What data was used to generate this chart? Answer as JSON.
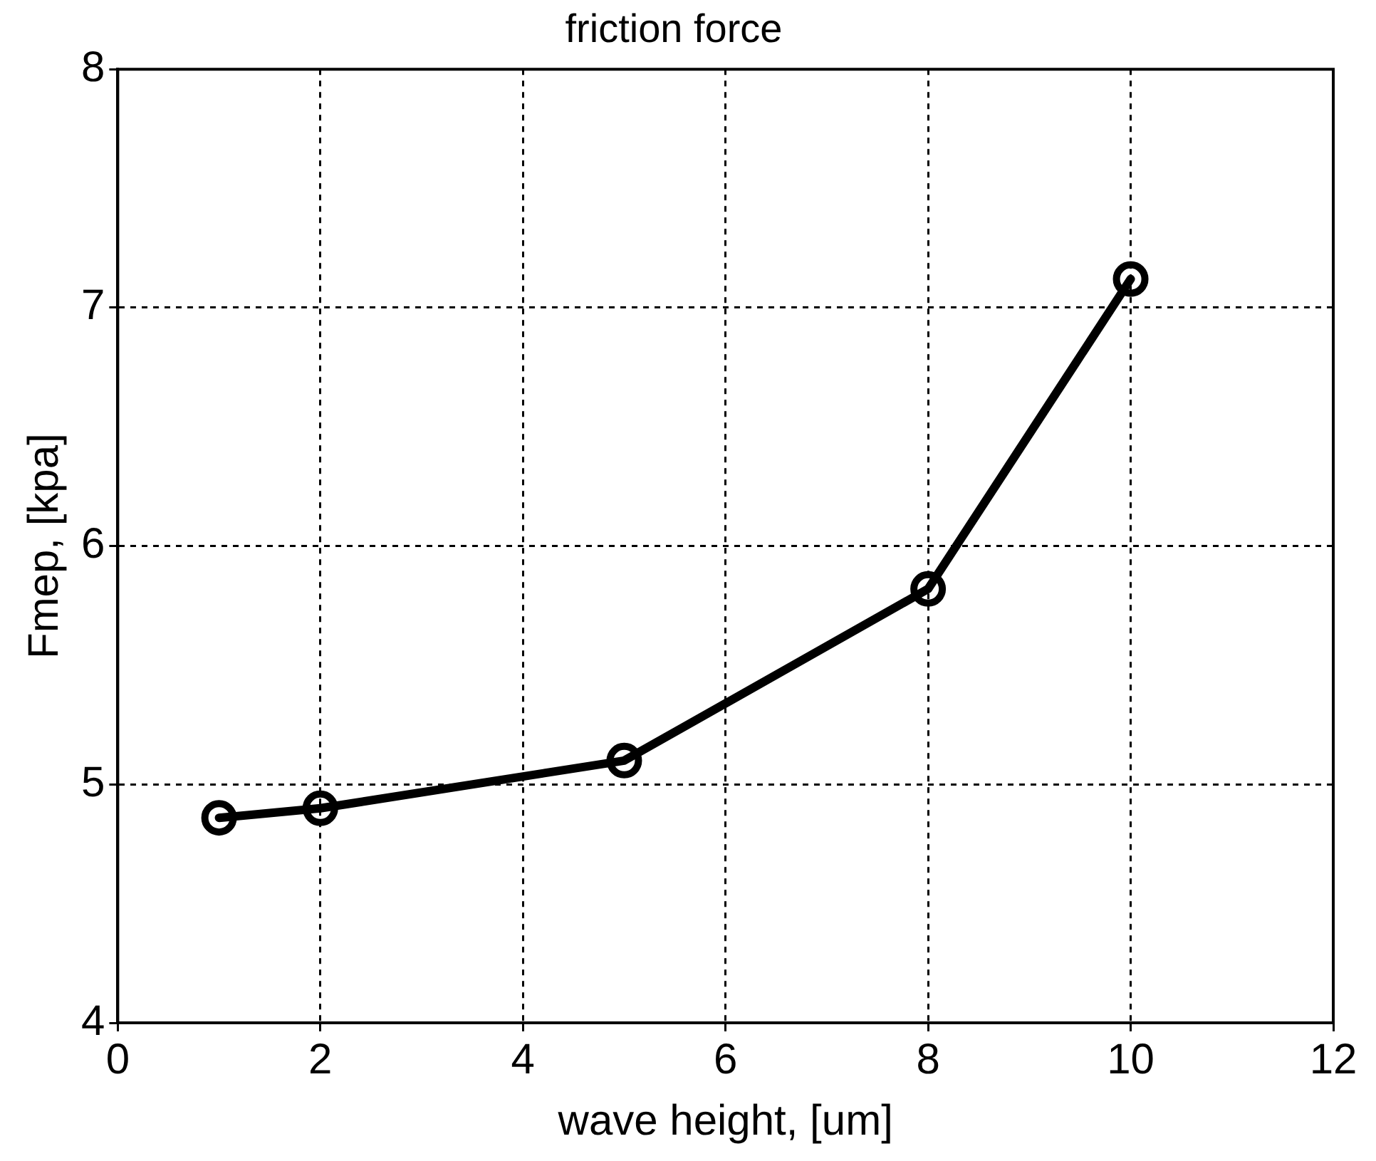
{
  "chart_data": {
    "type": "line",
    "title": "friction force",
    "xlabel": "wave height, [um]",
    "ylabel": "Fmep, [kpa]",
    "x": [
      1,
      2,
      5,
      8,
      10
    ],
    "series": [
      {
        "color": "#000000",
        "values": [
          4.86,
          4.9,
          5.1,
          5.82,
          7.12
        ]
      }
    ],
    "xlim": [
      0,
      12
    ],
    "xticks": [
      0,
      2,
      4,
      6,
      8,
      10,
      12
    ],
    "ylim": [
      4,
      8
    ],
    "yticks": [
      4,
      5,
      6,
      7,
      8
    ],
    "grid": true,
    "legend": false,
    "marker": "circle",
    "line_style": "solid"
  }
}
